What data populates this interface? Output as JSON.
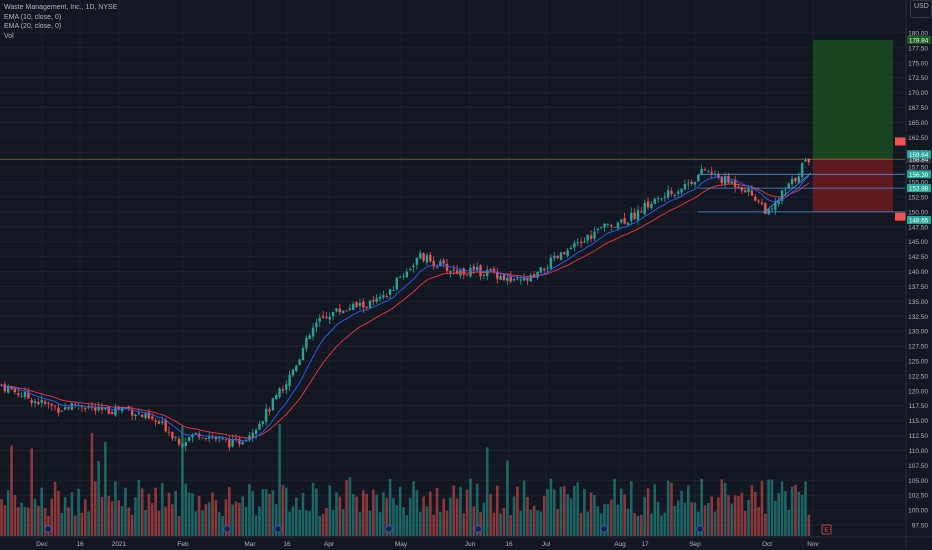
{
  "header": {
    "symbol_line": "Waste Management, Inc., 1D, NYSE",
    "ema10_line": "EMA (10, close, 0)",
    "ema20_line": "EMA (20, close, 0)",
    "vol_line": "Vol",
    "currency": "USD"
  },
  "colors": {
    "background": "#131722",
    "up": "#26a69a",
    "down": "#ef5350",
    "ema10": "#2962ff",
    "ema20": "#f23645",
    "grid": "#1e222d",
    "text": "#b2b5be",
    "target_zone": "#1b5e20",
    "stop_zone": "#7f1d1d"
  },
  "chart_data": {
    "type": "candlestick",
    "price_axis": {
      "ticks": [
        "180.00",
        "177.50",
        "175.00",
        "172.50",
        "170.00",
        "167.50",
        "165.00",
        "162.50",
        "160.00",
        "157.50",
        "155.00",
        "152.50",
        "150.00",
        "147.50",
        "145.00",
        "142.50",
        "140.00",
        "137.50",
        "135.00",
        "132.50",
        "130.00",
        "127.50",
        "125.00",
        "122.50",
        "120.00",
        "117.50",
        "115.00",
        "112.50",
        "110.00",
        "107.50",
        "105.00",
        "102.50",
        "100.00",
        "97.50"
      ],
      "range": [
        96.5,
        181.5
      ]
    },
    "time_axis": [
      "Dec",
      "16",
      "2021",
      "Feb",
      "Mar",
      "16",
      "Apr",
      "May",
      "Jun",
      "16",
      "Jul",
      "Aug",
      "17",
      "Sep",
      "Oct",
      "Nov"
    ],
    "price_labels": [
      {
        "text": "178.84",
        "value": 178.84,
        "color": "#1b5e20"
      },
      {
        "text": "158.84",
        "value": 158.84,
        "color": "#363a45"
      },
      {
        "text": "159.64",
        "value": 159.64,
        "color": "#26a69a"
      },
      {
        "text": "156.30",
        "value": 156.3,
        "color": "#26a69a"
      },
      {
        "text": "153.98",
        "value": 153.98,
        "color": "#26a69a"
      },
      {
        "text": "148.65",
        "value": 148.65,
        "color": "#26a69a"
      }
    ],
    "position": {
      "entry": 158.84,
      "target": 178.84,
      "stop": 150.0
    },
    "levels": [
      156.3,
      153.98,
      150.0
    ],
    "event_markers": [
      "E"
    ],
    "ohlc_summary": {
      "start": 121.0,
      "low": 110.5,
      "high": 159.8,
      "end": 158.9
    }
  }
}
